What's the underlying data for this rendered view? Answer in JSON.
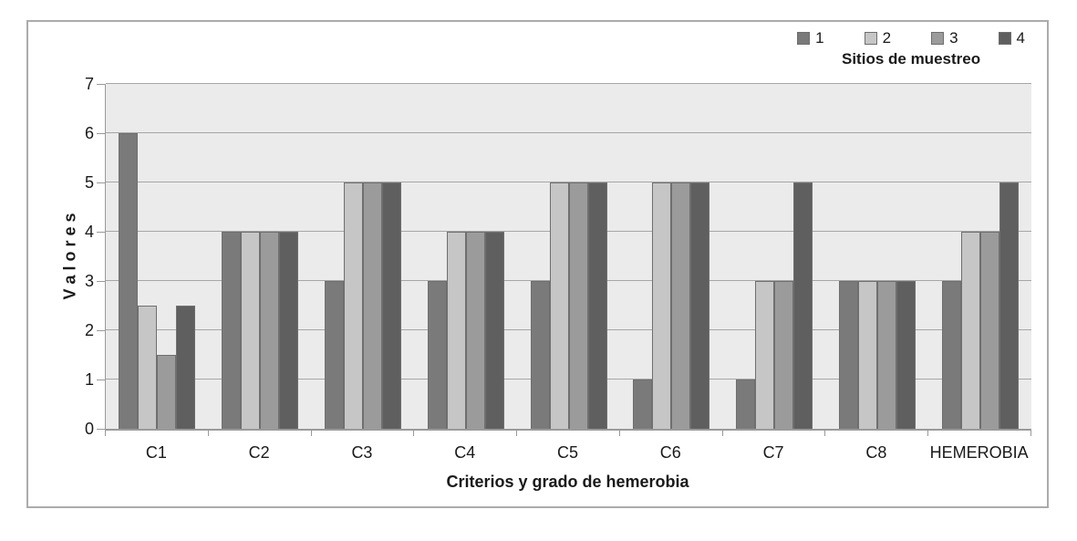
{
  "legend": {
    "title": "Sitios de muestreo"
  },
  "axes": {
    "y_label_display": "V a l o r e s",
    "x_label": "Criterios y grado de hemerobia"
  },
  "colors": {
    "plot_background": "#ebebeb",
    "gridline": "#a6a6a6",
    "axis_line": "#9a9a9a",
    "figure_border": "#ababab",
    "bar_outline": "#6f6f6f"
  },
  "chart_data": {
    "type": "bar",
    "title": "",
    "categories": [
      "C1",
      "C2",
      "C3",
      "C4",
      "C5",
      "C6",
      "C7",
      "C8",
      "HEMEROBIA"
    ],
    "series": [
      {
        "name": "1",
        "color": "#7a7a7a",
        "values": [
          6,
          4,
          3,
          3,
          3,
          1,
          1,
          3,
          3
        ]
      },
      {
        "name": "2",
        "color": "#c6c6c6",
        "values": [
          2.5,
          4,
          5,
          4,
          5,
          5,
          3,
          3,
          4
        ]
      },
      {
        "name": "3",
        "color": "#9b9b9b",
        "values": [
          1.5,
          4,
          5,
          4,
          5,
          5,
          3,
          3,
          4
        ]
      },
      {
        "name": "4",
        "color": "#5f5f5f",
        "values": [
          2.5,
          4,
          5,
          4,
          5,
          5,
          5,
          3,
          5
        ]
      }
    ],
    "xlabel": "Criterios y grado de hemerobia",
    "ylabel": "Valores",
    "legend_title": "Sitios de muestreo",
    "legend_position": "top-right",
    "ylim": [
      0,
      7
    ],
    "ytick_step": 1,
    "grid": true
  }
}
